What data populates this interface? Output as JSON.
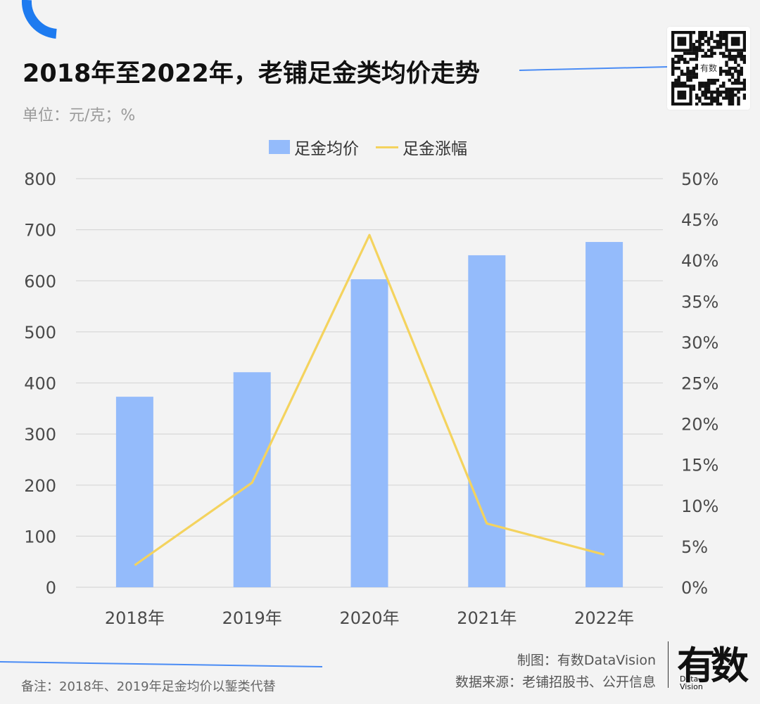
{
  "title": "2018年至2022年，老铺足金类均价走势",
  "unit": "单位：元/克；%",
  "legend": {
    "bar": "足金均价",
    "line": "足金涨幅"
  },
  "colors": {
    "bar": "#94bbfb",
    "line": "#f4d35e",
    "accent": "#1e7bf0",
    "grid": "#d8d8d8"
  },
  "note": "备注：2018年、2019年足金均价以錾类代替",
  "credits": {
    "made_by": "制图：有数DataVision",
    "source": "数据来源：老铺招股书、公开信息"
  },
  "qr": {
    "badge": "有数"
  },
  "logo": {
    "main": "有数",
    "sub_1": "Data",
    "sub_2": "Vision"
  },
  "chart_data": {
    "type": "bar",
    "categories": [
      "2018年",
      "2019年",
      "2020年",
      "2021年",
      "2022年"
    ],
    "series": [
      {
        "name": "足金均价",
        "type": "bar",
        "axis": "left",
        "values": [
          373,
          421,
          603,
          650,
          676
        ]
      },
      {
        "name": "足金涨幅",
        "type": "line",
        "axis": "right",
        "values": [
          2.7,
          12.8,
          43.1,
          7.8,
          4.0
        ]
      }
    ],
    "y_left": {
      "min": 0,
      "max": 800,
      "ticks": [
        "0",
        "100",
        "200",
        "300",
        "400",
        "500",
        "600",
        "700",
        "800"
      ]
    },
    "y_right": {
      "min": 0,
      "max": 50,
      "ticks": [
        "0%",
        "5%",
        "10%",
        "15%",
        "20%",
        "25%",
        "30%",
        "35%",
        "40%",
        "45%",
        "50%"
      ]
    },
    "grid": true,
    "legend_position": "top-center"
  }
}
